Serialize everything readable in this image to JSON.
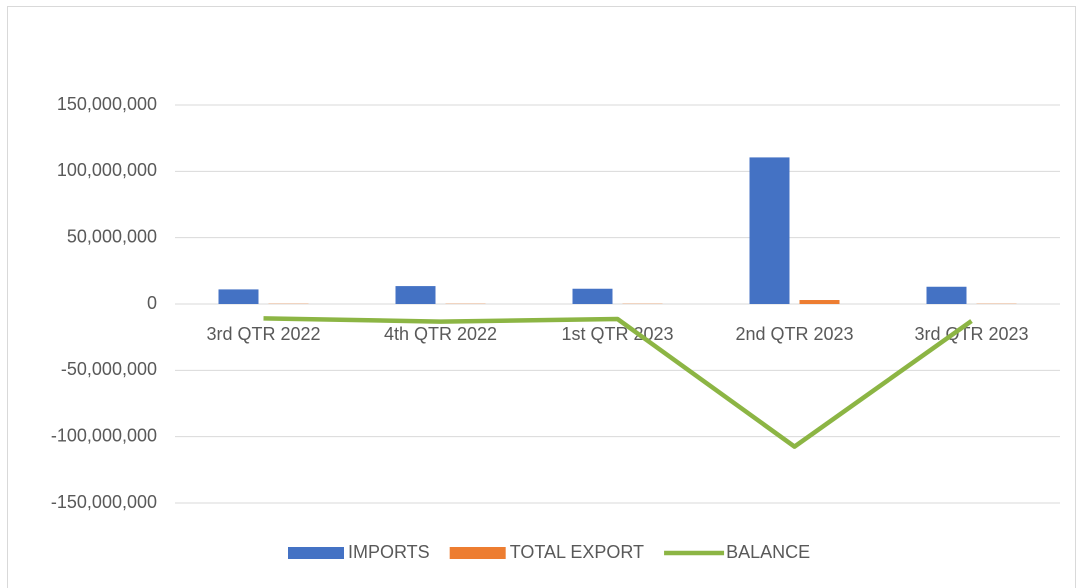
{
  "chart_data": {
    "type": "bar-line",
    "categories": [
      "3rd QTR 2022",
      "4th QTR 2022",
      "1st QTR 2023",
      "2nd QTR 2023",
      "3rd QTR 2023"
    ],
    "series": [
      {
        "name": "IMPORTS",
        "type": "bar",
        "color": "#4472c4",
        "values": [
          11000000,
          13500000,
          11500000,
          110500000,
          13000000
        ]
      },
      {
        "name": "TOTAL EXPORT",
        "type": "bar",
        "color": "#ed7d31",
        "values": [
          200000,
          200000,
          200000,
          3000000,
          200000
        ]
      },
      {
        "name": "BALANCE",
        "type": "line",
        "color": "#8cb544",
        "values": [
          -10800000,
          -13300000,
          -11300000,
          -107500000,
          -12800000
        ]
      }
    ],
    "ylim": [
      -150000000,
      150000000
    ],
    "yticks": [
      {
        "value": -150000000,
        "label": "-150,000,000"
      },
      {
        "value": -100000000,
        "label": "-100,000,000"
      },
      {
        "value": -50000000,
        "label": "-50,000,000"
      },
      0,
      {
        "value": 50000000,
        "label": "50,000,000"
      },
      {
        "value": 100000000,
        "label": "100,000,000"
      },
      {
        "value": 150000000,
        "label": "150,000,000"
      }
    ],
    "grid": true,
    "legend": "bottom"
  }
}
